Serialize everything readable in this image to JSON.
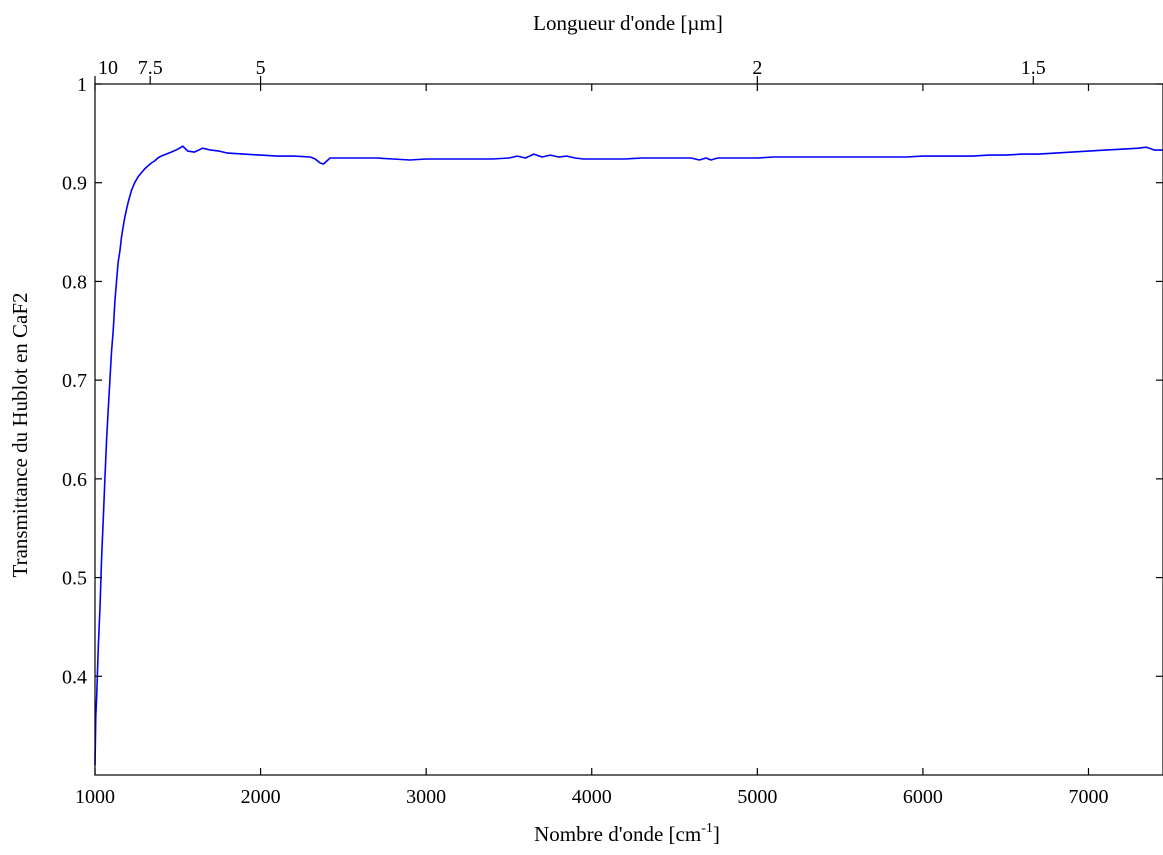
{
  "chart_data": {
    "type": "line",
    "title": "",
    "xlabel": "Nombre d'onde [cm",
    "xlabel_sup": "-1",
    "xlabel_suffix": "]",
    "ylabel": "Transmittance du Hublot en CaF2",
    "x2label": "Longueur d'onde [µm]",
    "xlim": [
      1000,
      7450
    ],
    "ylim": [
      0.3,
      1.0
    ],
    "x_ticks": [
      1000,
      2000,
      3000,
      4000,
      5000,
      6000,
      7000
    ],
    "x_tick_labels": [
      "1000",
      "2000",
      "3000",
      "4000",
      "5000",
      "6000",
      "7000"
    ],
    "y_ticks": [
      0.4,
      0.5,
      0.6,
      0.7,
      0.8,
      0.9,
      1.0
    ],
    "y_tick_labels": [
      "0.4",
      "0.5",
      "0.6",
      "0.7",
      "0.8",
      "0.9",
      "1"
    ],
    "x2_ticks_um": [
      10,
      7.5,
      5,
      2,
      1.5
    ],
    "x2_tick_labels": [
      "10",
      "7.5",
      "5",
      "2",
      "1.5"
    ],
    "grid": false,
    "legend": "none",
    "series": [
      {
        "color": "#0000ff",
        "x": [
          1000,
          1005,
          1010,
          1020,
          1030,
          1040,
          1050,
          1060,
          1070,
          1080,
          1090,
          1100,
          1110,
          1120,
          1130,
          1140,
          1150,
          1160,
          1170,
          1180,
          1190,
          1200,
          1220,
          1240,
          1260,
          1280,
          1300,
          1320,
          1340,
          1360,
          1380,
          1400,
          1430,
          1460,
          1500,
          1530,
          1560,
          1600,
          1650,
          1700,
          1750,
          1800,
          1900,
          2000,
          2100,
          2200,
          2300,
          2330,
          2360,
          2380,
          2420,
          2500,
          2600,
          2700,
          2800,
          2900,
          3000,
          3100,
          3200,
          3300,
          3400,
          3500,
          3550,
          3600,
          3650,
          3700,
          3750,
          3800,
          3850,
          3900,
          3950,
          4000,
          4100,
          4200,
          4300,
          4400,
          4500,
          4600,
          4650,
          4690,
          4720,
          4760,
          4800,
          4900,
          5000,
          5100,
          5200,
          5300,
          5400,
          5500,
          5600,
          5700,
          5800,
          5900,
          6000,
          6100,
          6200,
          6300,
          6400,
          6500,
          6600,
          6700,
          6800,
          6900,
          7000,
          7100,
          7200,
          7300,
          7350,
          7400,
          7450
        ],
        "y": [
          0.31,
          0.36,
          0.38,
          0.43,
          0.47,
          0.52,
          0.56,
          0.6,
          0.64,
          0.67,
          0.7,
          0.73,
          0.75,
          0.78,
          0.8,
          0.82,
          0.83,
          0.845,
          0.855,
          0.865,
          0.873,
          0.88,
          0.892,
          0.9,
          0.906,
          0.91,
          0.914,
          0.917,
          0.92,
          0.922,
          0.925,
          0.927,
          0.929,
          0.931,
          0.934,
          0.937,
          0.932,
          0.931,
          0.935,
          0.933,
          0.932,
          0.93,
          0.929,
          0.928,
          0.927,
          0.927,
          0.926,
          0.924,
          0.92,
          0.919,
          0.925,
          0.925,
          0.925,
          0.925,
          0.924,
          0.923,
          0.924,
          0.924,
          0.924,
          0.924,
          0.924,
          0.925,
          0.927,
          0.925,
          0.929,
          0.926,
          0.928,
          0.926,
          0.927,
          0.925,
          0.924,
          0.924,
          0.924,
          0.924,
          0.925,
          0.925,
          0.925,
          0.925,
          0.923,
          0.925,
          0.923,
          0.925,
          0.925,
          0.925,
          0.925,
          0.926,
          0.926,
          0.926,
          0.926,
          0.926,
          0.926,
          0.926,
          0.926,
          0.926,
          0.927,
          0.927,
          0.927,
          0.927,
          0.928,
          0.928,
          0.929,
          0.929,
          0.93,
          0.931,
          0.932,
          0.933,
          0.934,
          0.935,
          0.936,
          0.933,
          0.933
        ]
      }
    ]
  }
}
